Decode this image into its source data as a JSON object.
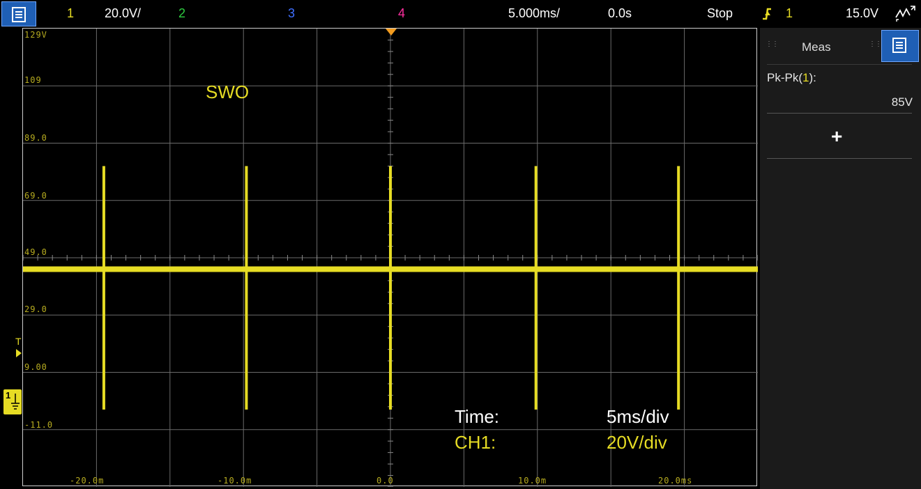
{
  "topbar": {
    "ch1_num": "1",
    "ch1_scale": "20.0V/",
    "ch2_num": "2",
    "ch3_num": "3",
    "ch4_num": "4",
    "timebase": "5.000ms/",
    "delay": "0.0s",
    "run_state": "Stop",
    "trigger_source": "1",
    "trigger_level": "15.0V"
  },
  "colors": {
    "ch1": "#e6dc24",
    "ch2": "#2ecc40",
    "ch3": "#3f6fff",
    "ch4": "#ff2fa0",
    "menu": "#1f5fb5"
  },
  "screen": {
    "y_labels": [
      "129V",
      "109",
      "89.0",
      "69.0",
      "49.0",
      "29.0",
      "9.00",
      "-11.0"
    ],
    "x_labels": [
      "-20.0m",
      "-10.0m",
      "0.0",
      "10.0m",
      "20.0ms"
    ],
    "annotation_title": "SWO",
    "time_label": "Time:",
    "time_value": "5ms/div",
    "ch1_label": "CH1:",
    "ch1_value": "20V/div",
    "trigger_marker_text": "T",
    "ground_marker_text": "1"
  },
  "chart_data": {
    "type": "line",
    "baseline_v": 45,
    "pulse_times_ms": [
      -19.5,
      -9.8,
      0.0,
      9.9,
      19.6
    ],
    "pulse_max_v": 81,
    "pulse_min_v": -4
  },
  "sidebar": {
    "title": "Meas",
    "measurement_label": "Pk-Pk(1):",
    "measurement_value": "85V",
    "add_symbol": "+"
  },
  "icons": {
    "menu": "menu-icon",
    "trigger_edge": "rising-edge-icon",
    "autoscale": "autoscale-icon"
  }
}
